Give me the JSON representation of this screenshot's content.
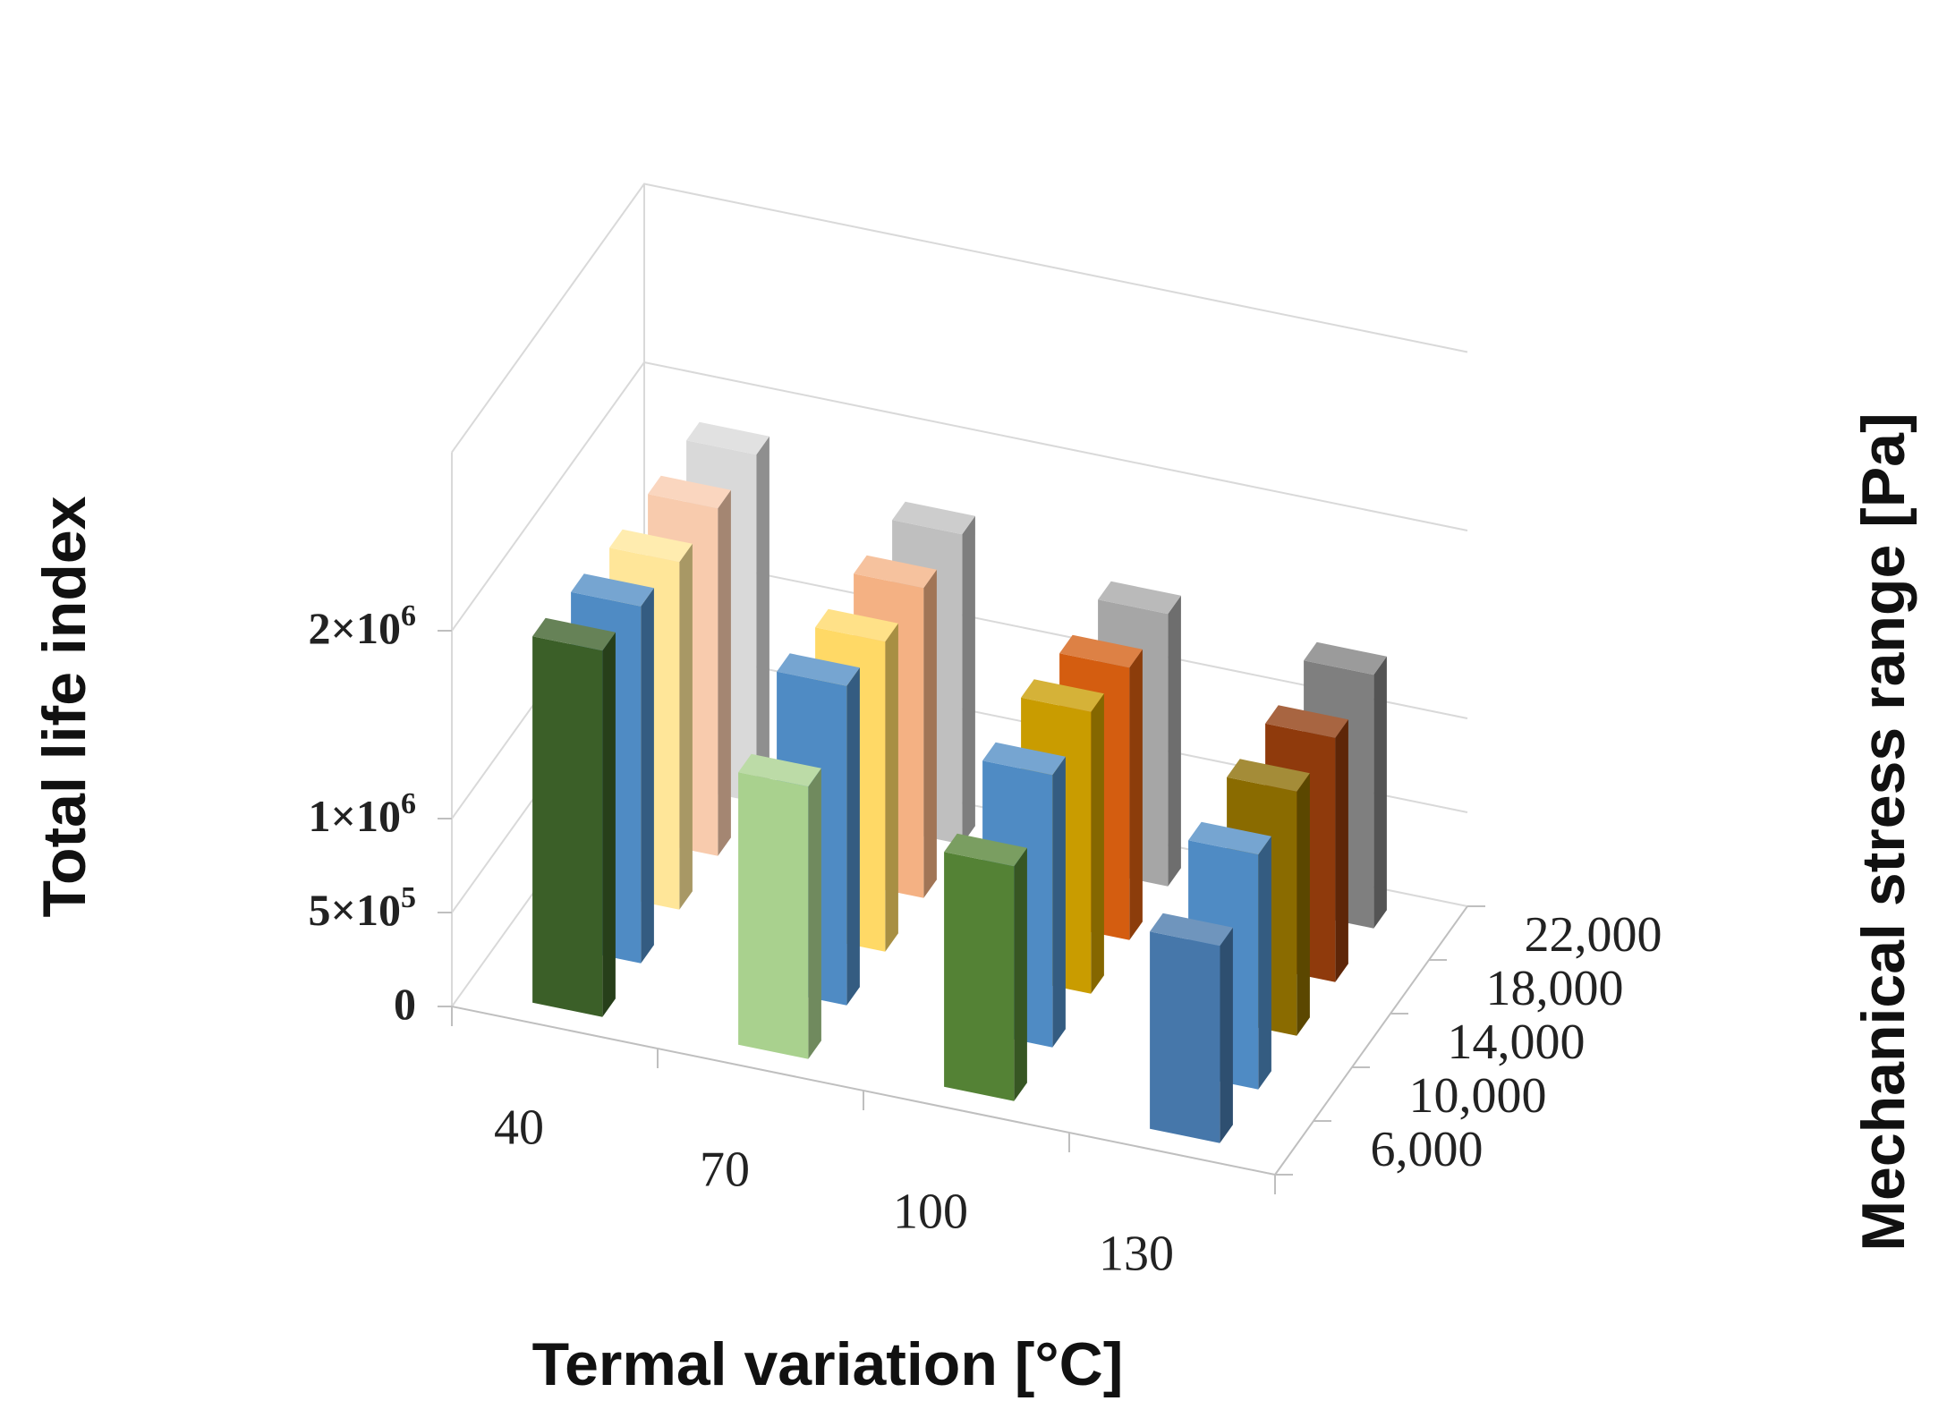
{
  "chart_data": {
    "type": "bar3d",
    "title": "",
    "xlabel": "Termal variation [°C]",
    "ylabel": "Mechanical stress range [Pa]",
    "zlabel": "Total life index",
    "x_categories": [
      "40",
      "70",
      "100",
      "130"
    ],
    "y_categories": [
      "6,000",
      "10,000",
      "14,000",
      "18,000",
      "22,000"
    ],
    "z_ticks": [
      {
        "value": 0,
        "label": "0",
        "mantissa": "0",
        "exponent": ""
      },
      {
        "value": 500000,
        "label": "5×10⁵",
        "mantissa": "5×10",
        "exponent": "5"
      },
      {
        "value": 1000000,
        "label": "1×10⁶",
        "mantissa": "1×10",
        "exponent": "6"
      },
      {
        "value": 2000000,
        "label": "2×10⁶",
        "mantissa": "2×10",
        "exponent": "6"
      }
    ],
    "series": [
      {
        "name": "6,000",
        "values": [
          1950000,
          1450000,
          1250000,
          1050000
        ]
      },
      {
        "name": "10,000",
        "values": [
          1900000,
          1700000,
          1450000,
          1250000
        ]
      },
      {
        "name": "14,000",
        "values": [
          1850000,
          1650000,
          1500000,
          1300000
        ]
      },
      {
        "name": "18,000",
        "values": [
          1850000,
          1650000,
          1450000,
          1300000
        ]
      },
      {
        "name": "22,000",
        "values": [
          1850000,
          1650000,
          1450000,
          1350000
        ]
      }
    ],
    "colors": [
      [
        "#3b5f28",
        "#a9d18e",
        "#548235",
        "#4677aa"
      ],
      [
        "#4f8bc4",
        "#4f8bc4",
        "#4f8bc4",
        "#4f8bc4"
      ],
      [
        "#ffe699",
        "#ffd966",
        "#c99c00",
        "#8a6b00"
      ],
      [
        "#f8cbad",
        "#f4b183",
        "#d45d10",
        "#8f3a0c"
      ],
      [
        "#d9d9d9",
        "#bfbfbf",
        "#a6a6a6",
        "#7f7f7f"
      ]
    ]
  }
}
